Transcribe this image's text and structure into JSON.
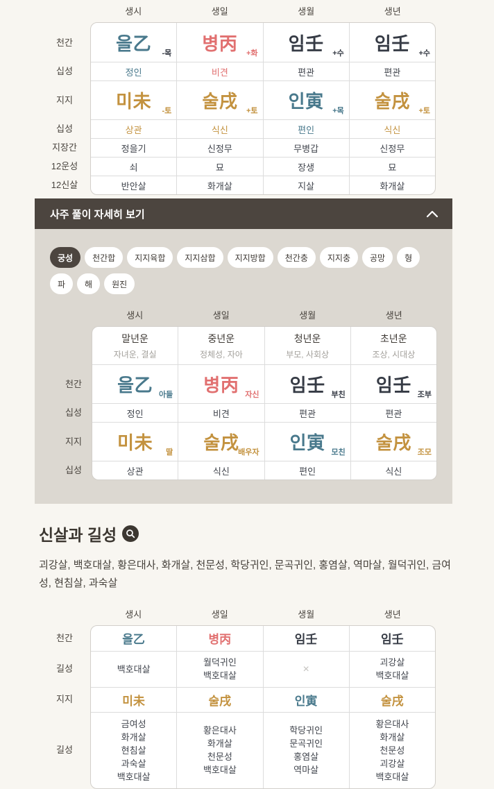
{
  "palette": {
    "teal": "#49798c",
    "red": "#e17070",
    "dark": "#363b45",
    "gold": "#c3923f",
    "neutral": "#42464e",
    "gray": "#9a9a9a",
    "bar_bg": "#4c453f",
    "panel_bg": "#dcd8d1",
    "page_bg": "#f8f6f1"
  },
  "top_table": {
    "columns": [
      "생시",
      "생일",
      "생월",
      "생년"
    ],
    "rows": [
      {
        "label": "천간",
        "kind": "hanja",
        "cells": [
          {
            "t": "을乙",
            "sub": "-목",
            "c": "teal",
            "sc": "dark"
          },
          {
            "t": "병丙",
            "sub": "+화",
            "c": "red",
            "sc": "red"
          },
          {
            "t": "임壬",
            "sub": "+수",
            "c": "dark",
            "sc": "dark"
          },
          {
            "t": "임壬",
            "sub": "+수",
            "c": "dark",
            "sc": "dark"
          }
        ]
      },
      {
        "label": "십성",
        "kind": "text",
        "cells": [
          {
            "t": "정인",
            "c": "teal"
          },
          {
            "t": "비견",
            "c": "red"
          },
          {
            "t": "편관",
            "c": "neutral"
          },
          {
            "t": "편관",
            "c": "neutral"
          }
        ]
      },
      {
        "label": "지지",
        "kind": "hanja",
        "cells": [
          {
            "t": "미未",
            "sub": "-토",
            "c": "gold",
            "sc": "gold"
          },
          {
            "t": "술戌",
            "sub": "+토",
            "c": "gold",
            "sc": "gold"
          },
          {
            "t": "인寅",
            "sub": "+목",
            "c": "teal",
            "sc": "teal"
          },
          {
            "t": "술戌",
            "sub": "+토",
            "c": "gold",
            "sc": "gold"
          }
        ]
      },
      {
        "label": "십성",
        "kind": "text",
        "cells": [
          {
            "t": "상관",
            "c": "gold"
          },
          {
            "t": "식신",
            "c": "gold"
          },
          {
            "t": "편인",
            "c": "teal"
          },
          {
            "t": "식신",
            "c": "gold"
          }
        ]
      },
      {
        "label": "지장간",
        "kind": "text",
        "cells": [
          {
            "t": "정을기"
          },
          {
            "t": "신정무"
          },
          {
            "t": "무병갑"
          },
          {
            "t": "신정무"
          }
        ]
      },
      {
        "label": "12운성",
        "kind": "text",
        "cells": [
          {
            "t": "쇠"
          },
          {
            "t": "묘"
          },
          {
            "t": "장생"
          },
          {
            "t": "묘"
          }
        ]
      },
      {
        "label": "12신살",
        "kind": "text",
        "cells": [
          {
            "t": "반안살"
          },
          {
            "t": "화개살"
          },
          {
            "t": "지살"
          },
          {
            "t": "화개살"
          }
        ]
      }
    ]
  },
  "detail": {
    "title": "사주 풀이 자세히 보기",
    "chips": [
      {
        "label": "궁성",
        "selected": true
      },
      {
        "label": "천간합",
        "selected": false
      },
      {
        "label": "지지육합",
        "selected": false
      },
      {
        "label": "지지삼합",
        "selected": false
      },
      {
        "label": "지지방합",
        "selected": false
      },
      {
        "label": "천간충",
        "selected": false
      },
      {
        "label": "지지충",
        "selected": false
      },
      {
        "label": "공망",
        "selected": false
      },
      {
        "label": "형",
        "selected": false
      },
      {
        "label": "파",
        "selected": false
      },
      {
        "label": "해",
        "selected": false
      },
      {
        "label": "원진",
        "selected": false
      }
    ],
    "table": {
      "columns": [
        "생시",
        "생일",
        "생월",
        "생년"
      ],
      "rows": [
        {
          "label": "",
          "kind": "fortune",
          "cells": [
            {
              "title": "말년운",
              "desc": "자녀운, 결실"
            },
            {
              "title": "중년운",
              "desc": "정체성, 자아"
            },
            {
              "title": "청년운",
              "desc": "부모, 사회상"
            },
            {
              "title": "초년운",
              "desc": "조상, 시대상"
            }
          ]
        },
        {
          "label": "천간",
          "kind": "hanja",
          "cells": [
            {
              "t": "을乙",
              "sub": "아들",
              "c": "teal",
              "sc": "teal"
            },
            {
              "t": "병丙",
              "sub": "자신",
              "c": "red",
              "sc": "red"
            },
            {
              "t": "임壬",
              "sub": "부친",
              "c": "dark",
              "sc": "dark"
            },
            {
              "t": "임壬",
              "sub": "조부",
              "c": "dark",
              "sc": "dark"
            }
          ]
        },
        {
          "label": "십성",
          "kind": "text",
          "cells": [
            {
              "t": "정인"
            },
            {
              "t": "비견"
            },
            {
              "t": "편관"
            },
            {
              "t": "편관"
            }
          ]
        },
        {
          "label": "지지",
          "kind": "hanja",
          "cells": [
            {
              "t": "미未",
              "sub": "딸",
              "c": "gold",
              "sc": "gold"
            },
            {
              "t": "술戌",
              "sub": "배우자",
              "c": "gold",
              "sc": "gold"
            },
            {
              "t": "인寅",
              "sub": "모친",
              "c": "teal",
              "sc": "teal"
            },
            {
              "t": "술戌",
              "sub": "조모",
              "c": "gold",
              "sc": "gold"
            }
          ]
        },
        {
          "label": "십성",
          "kind": "text",
          "cells": [
            {
              "t": "상관"
            },
            {
              "t": "식신"
            },
            {
              "t": "편인"
            },
            {
              "t": "식신"
            }
          ]
        }
      ]
    }
  },
  "sinsal": {
    "heading": "신살과 길성",
    "list": "괴강살, 백호대살, 황은대사, 화개살, 천문성, 학당귀인, 문곡귀인, 홍염살, 역마살, 월덕귀인, 금여성, 현침살, 과숙살",
    "table": {
      "columns": [
        "생시",
        "생일",
        "생월",
        "생년"
      ],
      "rows": [
        {
          "label": "천간",
          "kind": "hanja-sm",
          "cells": [
            {
              "t": "을乙",
              "c": "teal"
            },
            {
              "t": "병丙",
              "c": "red"
            },
            {
              "t": "임壬",
              "c": "dark"
            },
            {
              "t": "임壬",
              "c": "dark"
            }
          ]
        },
        {
          "label": "길성",
          "kind": "lines",
          "cells": [
            [
              "백호대살"
            ],
            [
              "월덕귀인",
              "백호대살"
            ],
            [
              "×"
            ],
            [
              "괴강살",
              "백호대살"
            ]
          ]
        },
        {
          "label": "지지",
          "kind": "hanja-sm",
          "cells": [
            {
              "t": "미未",
              "c": "gold"
            },
            {
              "t": "술戌",
              "c": "gold"
            },
            {
              "t": "인寅",
              "c": "teal"
            },
            {
              "t": "술戌",
              "c": "gold"
            }
          ]
        },
        {
          "label": "길성",
          "kind": "lines",
          "cells": [
            [
              "금여성",
              "화개살",
              "현침살",
              "과숙살",
              "백호대살"
            ],
            [
              "황은대사",
              "화개살",
              "천문성",
              "백호대살"
            ],
            [
              "학당귀인",
              "문곡귀인",
              "홍염살",
              "역마살"
            ],
            [
              "황은대사",
              "화개살",
              "천문성",
              "괴강살",
              "백호대살"
            ]
          ]
        }
      ]
    }
  }
}
